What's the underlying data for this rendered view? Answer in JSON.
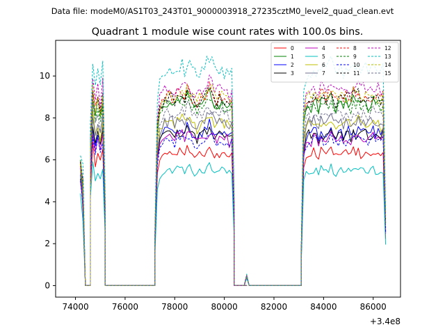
{
  "figure": {
    "suptitle": "Data file: modeM0/AS1T03_243T01_9000003918_27235cztM0_level2_quad_clean.evt",
    "offset_label": "+3.4e8"
  },
  "chart_data": {
    "type": "line",
    "title": "Quadrant 1 module wise count rates with 100.0s bins.",
    "xlabel": "",
    "ylabel": "",
    "x_offset": 340000000,
    "xlim": [
      73200,
      87100
    ],
    "ylim": [
      -0.55,
      11.7
    ],
    "xticks": [
      74000,
      76000,
      78000,
      80000,
      82000,
      84000,
      86000
    ],
    "xtick_labels": [
      "74000",
      "76000",
      "78000",
      "80000",
      "82000",
      "84000",
      "86000"
    ],
    "yticks": [
      0,
      2,
      4,
      6,
      8,
      10
    ],
    "ytick_labels": [
      "0",
      "2",
      "4",
      "6",
      "8",
      "10"
    ],
    "grid": false,
    "legend_placement": "top-right",
    "legend_columns": 4,
    "bin_size_s": 100,
    "segments": [
      {
        "x0": 74200,
        "x1": 74400,
        "profile": [
          1.0,
          0.55,
          0.0
        ]
      },
      {
        "x0": 74400,
        "x1": 74600,
        "profile": [
          0.0,
          0.0,
          0.0
        ]
      },
      {
        "x0": 74600,
        "x1": 75200,
        "profile": [
          0.75,
          1.05,
          0.93,
          1.0,
          0.92,
          1.02,
          0.4
        ]
      },
      {
        "x0": 75200,
        "x1": 77200,
        "profile": [
          0.0,
          0.0
        ]
      },
      {
        "x0": 77200,
        "x1": 80400,
        "profile": [
          0.25,
          0.85,
          0.95,
          0.97,
          1.0,
          1.0,
          1.02,
          1.0,
          0.98,
          1.02,
          1.01,
          1.03,
          1.0,
          1.04,
          1.02,
          1.0,
          0.98,
          0.97,
          0.99,
          1.0,
          1.01,
          1.03,
          1.06,
          1.03,
          1.0,
          0.98,
          1.0,
          1.01,
          0.99,
          1.0,
          0.97,
          0.98,
          0.4
        ]
      },
      {
        "x0": 80400,
        "x1": 80900,
        "profile": [
          0.0,
          0.0,
          0.0,
          0.0,
          0.0,
          0.0
        ]
      },
      {
        "x0": 80800,
        "x1": 81000,
        "profile": [
          0.0,
          1.0,
          0.0
        ]
      },
      {
        "x0": 81000,
        "x1": 83100,
        "profile": [
          0.0,
          0.0
        ]
      },
      {
        "x0": 83100,
        "x1": 86500,
        "profile": [
          0.2,
          0.9,
          0.97,
          1.0,
          0.98,
          1.01,
          1.0,
          0.97,
          1.02,
          1.0,
          0.99,
          1.01,
          1.03,
          1.0,
          0.98,
          1.0,
          1.02,
          0.99,
          1.0,
          1.01,
          0.98,
          1.02,
          1.0,
          1.03,
          0.99,
          1.0,
          1.01,
          0.98,
          1.0,
          1.02,
          0.99,
          1.0,
          0.98,
          1.0,
          0.35
        ]
      }
    ],
    "series": [
      {
        "name": "0",
        "color": "#ff0000",
        "dashed": false,
        "level": 6.3,
        "first": 5.9,
        "bump": 0.45
      },
      {
        "name": "1",
        "color": "#008000",
        "dashed": false,
        "level": 8.7,
        "first": 6.0,
        "bump": 0.5
      },
      {
        "name": "2",
        "color": "#0000ff",
        "dashed": false,
        "level": 7.3,
        "first": 5.3,
        "bump": 0.45
      },
      {
        "name": "3",
        "color": "#000000",
        "dashed": false,
        "level": 7.2,
        "first": 5.1,
        "bump": 0.45
      },
      {
        "name": "4",
        "color": "#bf00bf",
        "dashed": false,
        "level": 7.0,
        "first": 5.0,
        "bump": 0.45
      },
      {
        "name": "5",
        "color": "#00bfbf",
        "dashed": false,
        "level": 5.5,
        "first": 4.4,
        "bump": 0.35
      },
      {
        "name": "6",
        "color": "#bfbf00",
        "dashed": false,
        "level": 7.7,
        "first": 5.5,
        "bump": 0.45
      },
      {
        "name": "7",
        "color": "#6f6f8f",
        "dashed": false,
        "level": 7.8,
        "first": 5.6,
        "bump": 0.5
      },
      {
        "name": "8",
        "color": "#ff0000",
        "dashed": true,
        "level": 9.0,
        "first": 5.7,
        "bump": 0.5
      },
      {
        "name": "9",
        "color": "#008000",
        "dashed": true,
        "level": 8.6,
        "first": 5.8,
        "bump": 0.5
      },
      {
        "name": "10",
        "color": "#0000ff",
        "dashed": true,
        "level": 6.9,
        "first": 5.0,
        "bump": 0.45
      },
      {
        "name": "11",
        "color": "#000000",
        "dashed": true,
        "level": 8.9,
        "first": 5.9,
        "bump": 0.5
      },
      {
        "name": "12",
        "color": "#bf00bf",
        "dashed": true,
        "level": 9.4,
        "first": 5.6,
        "bump": 0.5
      },
      {
        "name": "13",
        "color": "#00bfbf",
        "dashed": true,
        "level": 10.3,
        "first": 6.2,
        "bump": 0.55
      },
      {
        "name": "14",
        "color": "#bfbf00",
        "dashed": true,
        "level": 9.0,
        "first": 5.8,
        "bump": 0.5
      },
      {
        "name": "15",
        "color": "#6f6f8f",
        "dashed": true,
        "level": 8.2,
        "first": 5.4,
        "bump": 0.5
      }
    ]
  }
}
